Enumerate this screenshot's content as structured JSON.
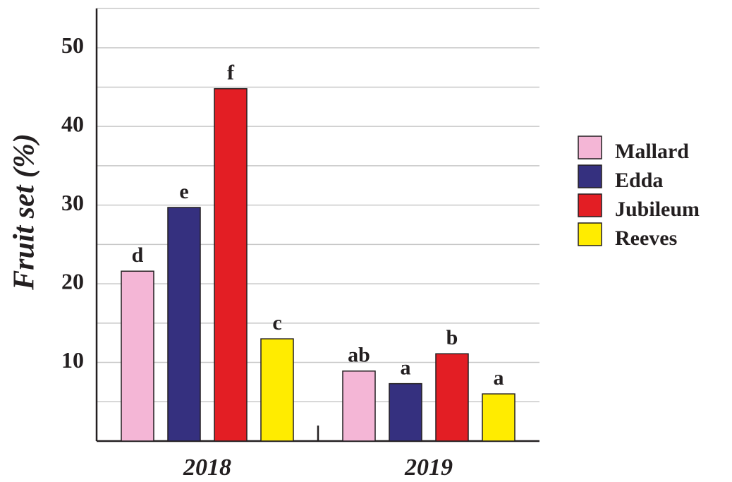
{
  "chart_data": {
    "type": "bar",
    "y_label": "Fruit set (%)",
    "categories": [
      "2018",
      "2019"
    ],
    "series": [
      {
        "name": "Mallard",
        "color": "#f4b6d6",
        "values": [
          21.6,
          8.9
        ],
        "letters": [
          "d",
          "ab"
        ]
      },
      {
        "name": "Edda",
        "color": "#35307f",
        "values": [
          29.7,
          7.3
        ],
        "letters": [
          "e",
          "a"
        ]
      },
      {
        "name": "Jubileum",
        "color": "#e31e24",
        "values": [
          44.8,
          11.1
        ],
        "letters": [
          "f",
          "b"
        ]
      },
      {
        "name": "Reeves",
        "color": "#ffec00",
        "values": [
          13.0,
          6.0
        ],
        "letters": [
          "c",
          "a"
        ]
      }
    ],
    "ylim": [
      0,
      55
    ],
    "yticks": [
      10,
      20,
      30,
      40,
      50
    ],
    "minor_yticks": [
      5,
      15,
      25,
      35,
      45,
      55
    ],
    "grid": true,
    "legend": "right"
  }
}
